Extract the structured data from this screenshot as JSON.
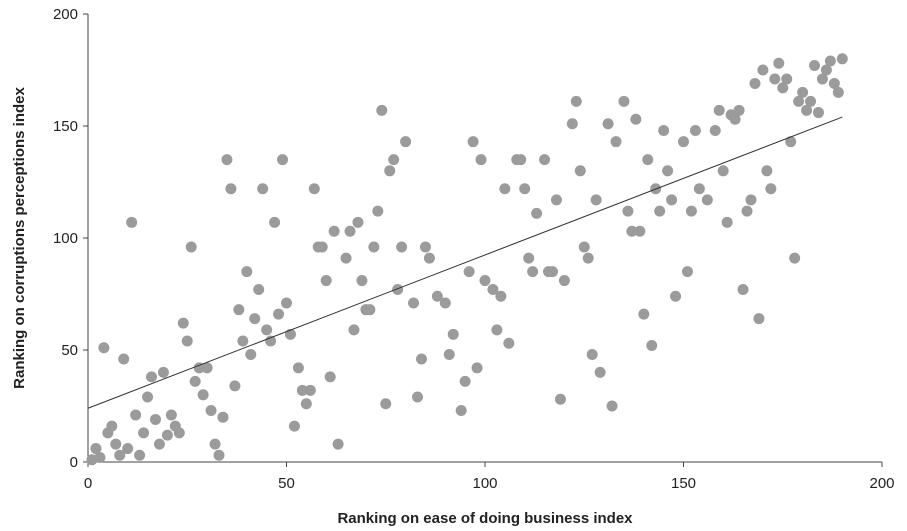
{
  "chart_data": {
    "type": "scatter",
    "title": "",
    "xlabel": "Ranking on ease of doing business index",
    "ylabel": "Ranking on corruptions perceptions index",
    "xlim": [
      0,
      200
    ],
    "ylim": [
      0,
      200
    ],
    "x_ticks": [
      0,
      50,
      100,
      150,
      200
    ],
    "y_ticks": [
      0,
      50,
      100,
      150,
      200
    ],
    "grid": false,
    "legend": "none",
    "colors": {
      "points": "#9b9b9b",
      "trendline": "#333333",
      "axes": "#444444"
    },
    "series": [
      {
        "points": [
          [
            1,
            1
          ],
          [
            2,
            6
          ],
          [
            3,
            2
          ],
          [
            4,
            51
          ],
          [
            5,
            13
          ],
          [
            6,
            16
          ],
          [
            7,
            8
          ],
          [
            8,
            3
          ],
          [
            9,
            46
          ],
          [
            10,
            6
          ],
          [
            11,
            107
          ],
          [
            12,
            21
          ],
          [
            13,
            3
          ],
          [
            14,
            13
          ],
          [
            15,
            29
          ],
          [
            16,
            38
          ],
          [
            17,
            19
          ],
          [
            18,
            8
          ],
          [
            19,
            40
          ],
          [
            20,
            12
          ],
          [
            21,
            21
          ],
          [
            22,
            16
          ],
          [
            23,
            13
          ],
          [
            24,
            62
          ],
          [
            25,
            54
          ],
          [
            26,
            96
          ],
          [
            27,
            36
          ],
          [
            28,
            42
          ],
          [
            29,
            30
          ],
          [
            30,
            42
          ],
          [
            31,
            23
          ],
          [
            32,
            8
          ],
          [
            33,
            3
          ],
          [
            34,
            20
          ],
          [
            35,
            135
          ],
          [
            36,
            122
          ],
          [
            37,
            34
          ],
          [
            38,
            68
          ],
          [
            39,
            54
          ],
          [
            40,
            85
          ],
          [
            41,
            48
          ],
          [
            42,
            64
          ],
          [
            43,
            77
          ],
          [
            44,
            122
          ],
          [
            45,
            59
          ],
          [
            46,
            54
          ],
          [
            47,
            107
          ],
          [
            48,
            66
          ],
          [
            49,
            135
          ],
          [
            50,
            71
          ],
          [
            51,
            57
          ],
          [
            52,
            16
          ],
          [
            53,
            42
          ],
          [
            54,
            32
          ],
          [
            55,
            26
          ],
          [
            56,
            32
          ],
          [
            57,
            122
          ],
          [
            58,
            96
          ],
          [
            59,
            96
          ],
          [
            60,
            81
          ],
          [
            61,
            38
          ],
          [
            62,
            103
          ],
          [
            63,
            8
          ],
          [
            65,
            91
          ],
          [
            66,
            103
          ],
          [
            67,
            59
          ],
          [
            68,
            107
          ],
          [
            69,
            81
          ],
          [
            70,
            68
          ],
          [
            71,
            68
          ],
          [
            72,
            96
          ],
          [
            73,
            112
          ],
          [
            74,
            157
          ],
          [
            75,
            26
          ],
          [
            76,
            130
          ],
          [
            77,
            135
          ],
          [
            78,
            77
          ],
          [
            79,
            96
          ],
          [
            80,
            143
          ],
          [
            82,
            71
          ],
          [
            83,
            29
          ],
          [
            84,
            46
          ],
          [
            85,
            96
          ],
          [
            86,
            91
          ],
          [
            88,
            74
          ],
          [
            90,
            71
          ],
          [
            91,
            48
          ],
          [
            92,
            57
          ],
          [
            94,
            23
          ],
          [
            95,
            36
          ],
          [
            96,
            85
          ],
          [
            97,
            143
          ],
          [
            98,
            42
          ],
          [
            99,
            135
          ],
          [
            100,
            81
          ],
          [
            102,
            77
          ],
          [
            103,
            59
          ],
          [
            104,
            74
          ],
          [
            105,
            122
          ],
          [
            106,
            53
          ],
          [
            108,
            135
          ],
          [
            109,
            135
          ],
          [
            110,
            122
          ],
          [
            111,
            91
          ],
          [
            112,
            85
          ],
          [
            113,
            111
          ],
          [
            115,
            135
          ],
          [
            116,
            85
          ],
          [
            117,
            85
          ],
          [
            118,
            117
          ],
          [
            119,
            28
          ],
          [
            120,
            81
          ],
          [
            122,
            151
          ],
          [
            123,
            161
          ],
          [
            124,
            130
          ],
          [
            125,
            96
          ],
          [
            126,
            91
          ],
          [
            127,
            48
          ],
          [
            128,
            117
          ],
          [
            129,
            40
          ],
          [
            131,
            151
          ],
          [
            132,
            25
          ],
          [
            133,
            143
          ],
          [
            135,
            161
          ],
          [
            136,
            112
          ],
          [
            137,
            103
          ],
          [
            138,
            153
          ],
          [
            139,
            103
          ],
          [
            140,
            66
          ],
          [
            141,
            135
          ],
          [
            142,
            52
          ],
          [
            143,
            122
          ],
          [
            144,
            112
          ],
          [
            145,
            148
          ],
          [
            146,
            130
          ],
          [
            147,
            117
          ],
          [
            148,
            74
          ],
          [
            150,
            143
          ],
          [
            151,
            85
          ],
          [
            152,
            112
          ],
          [
            153,
            148
          ],
          [
            154,
            122
          ],
          [
            156,
            117
          ],
          [
            158,
            148
          ],
          [
            159,
            157
          ],
          [
            160,
            130
          ],
          [
            161,
            107
          ],
          [
            162,
            155
          ],
          [
            163,
            153
          ],
          [
            164,
            157
          ],
          [
            165,
            77
          ],
          [
            166,
            112
          ],
          [
            167,
            117
          ],
          [
            168,
            169
          ],
          [
            169,
            64
          ],
          [
            170,
            175
          ],
          [
            171,
            130
          ],
          [
            172,
            122
          ],
          [
            173,
            171
          ],
          [
            174,
            178
          ],
          [
            175,
            167
          ],
          [
            176,
            171
          ],
          [
            177,
            143
          ],
          [
            178,
            91
          ],
          [
            179,
            161
          ],
          [
            180,
            165
          ],
          [
            181,
            157
          ],
          [
            182,
            161
          ],
          [
            183,
            177
          ],
          [
            184,
            156
          ],
          [
            185,
            171
          ],
          [
            186,
            175
          ],
          [
            187,
            179
          ],
          [
            188,
            169
          ],
          [
            189,
            165
          ],
          [
            190,
            180
          ]
        ]
      }
    ],
    "trendline": {
      "x": [
        0,
        190
      ],
      "y": [
        24,
        154
      ]
    }
  }
}
